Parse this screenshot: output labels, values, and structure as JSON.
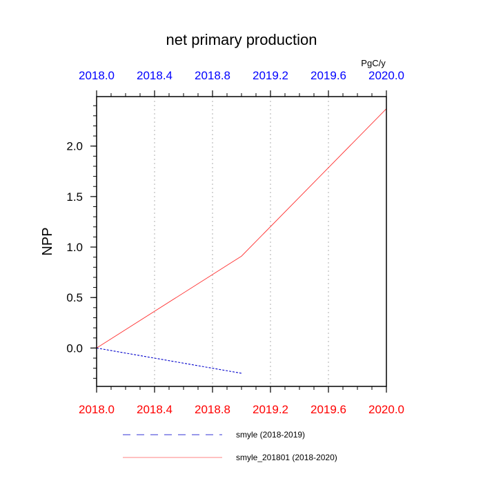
{
  "chart_data": {
    "type": "line",
    "title": "net primary production",
    "ylabel": "NPP",
    "units": "PgC/y",
    "xlim": [
      2018.0,
      2020.0
    ],
    "ylim": [
      -0.38,
      2.49
    ],
    "x_ticks": [
      2018.0,
      2018.4,
      2018.8,
      2019.2,
      2019.6,
      2020.0
    ],
    "x_tick_labels": [
      "2018.0",
      "2018.4",
      "2018.8",
      "2019.2",
      "2019.6",
      "2020.0"
    ],
    "y_ticks": [
      0.0,
      0.5,
      1.0,
      1.5,
      2.0
    ],
    "y_tick_labels": [
      "0.0",
      "0.5",
      "1.0",
      "1.5",
      "2.0"
    ],
    "grid": "vertical-dotted",
    "top_axis_color": "#0000ff",
    "bottom_axis_color": "#ff0000",
    "series": [
      {
        "name": "smyle (2018-2019)",
        "x": [
          2018.0,
          2019.0
        ],
        "y": [
          0.0,
          -0.25
        ],
        "color": "#0000cc",
        "dash": "dashed"
      },
      {
        "name": "smyle_201801 (2018-2020)",
        "x": [
          2018.0,
          2019.0,
          2020.0
        ],
        "y": [
          0.0,
          0.91,
          2.37
        ],
        "color": "#ff3030",
        "dash": "solid"
      }
    ]
  }
}
